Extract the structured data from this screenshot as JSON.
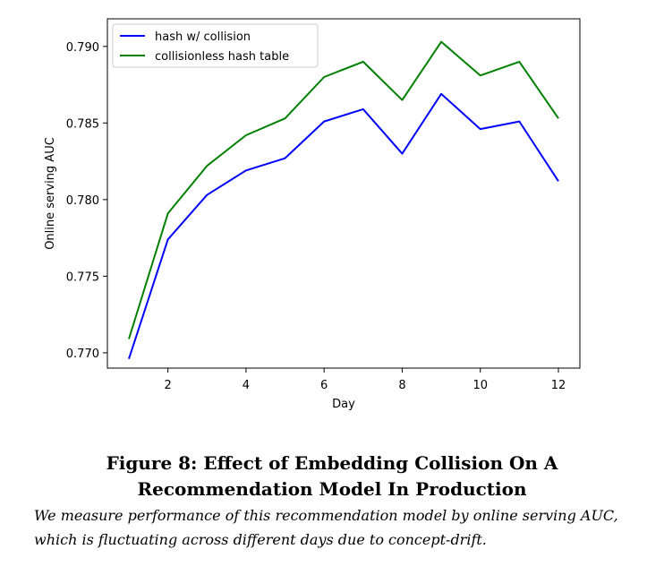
{
  "figure": {
    "title_line1": "Figure 8: Effect of Embedding Collision On A",
    "title_line2": "Recommendation Model In Production",
    "caption_line1": "We measure performance of this recommendation model by online serving AUC,",
    "caption_line2": "which is fluctuating across different days due to concept-drift."
  },
  "chart_data": {
    "type": "line",
    "title": "",
    "xlabel": "Day",
    "ylabel": "Online serving AUC",
    "x": [
      1,
      2,
      3,
      4,
      5,
      6,
      7,
      8,
      9,
      10,
      11,
      12
    ],
    "xlim": [
      0.45,
      12.55
    ],
    "ylim": [
      0.769,
      0.7918
    ],
    "xticks": [
      2,
      4,
      6,
      8,
      10,
      12
    ],
    "xtick_labels": [
      "2",
      "4",
      "6",
      "8",
      "10",
      "12"
    ],
    "yticks": [
      0.77,
      0.775,
      0.78,
      0.785,
      0.79
    ],
    "ytick_labels": [
      "0.770",
      "0.775",
      "0.780",
      "0.785",
      "0.790"
    ],
    "grid": false,
    "legend_position": "top-left",
    "series": [
      {
        "name": "hash w/ collision",
        "color": "#0000ff",
        "values": [
          0.7696,
          0.7774,
          0.7803,
          0.7819,
          0.7827,
          0.7851,
          0.7859,
          0.783,
          0.7869,
          0.7846,
          0.7851,
          0.7812
        ]
      },
      {
        "name": "collisionless hash table",
        "color": "#008000",
        "values": [
          0.7709,
          0.7791,
          0.7822,
          0.7842,
          0.7853,
          0.788,
          0.789,
          0.7865,
          0.7903,
          0.7881,
          0.789,
          0.7853
        ]
      }
    ]
  }
}
